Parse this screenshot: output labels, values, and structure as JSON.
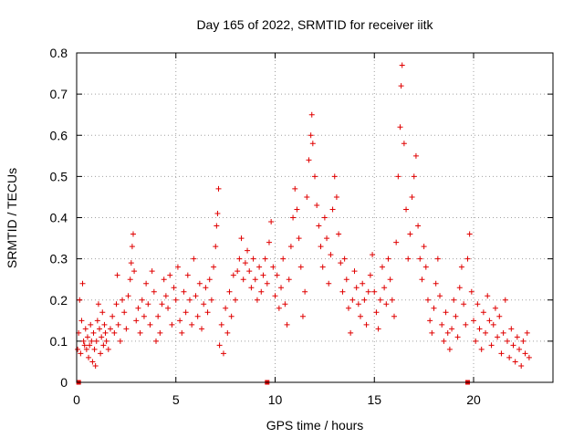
{
  "chart_data": {
    "type": "scatter",
    "title": "Day 165 of 2022, SRMTID for receiver iitk",
    "xlabel": "GPS time / hours",
    "ylabel": "SRMTID / TECUs",
    "xlim": [
      0,
      24
    ],
    "ylim": [
      0,
      0.8
    ],
    "grid": true,
    "xticks": [
      0,
      5,
      10,
      15,
      20
    ],
    "yticks": [
      0,
      0.1,
      0.2,
      0.3,
      0.4,
      0.5,
      0.6,
      0.7,
      0.8
    ],
    "xtick_labels": [
      "0",
      "5",
      "10",
      "15",
      "20"
    ],
    "ytick_labels": [
      "0",
      "0.1",
      "0.2",
      "0.3",
      "0.4",
      "0.5",
      "0.6",
      "0.7",
      "0.8"
    ],
    "marker_symbol": "+",
    "marker_color": "#e00000",
    "zero_markers_x": [
      0.1,
      9.6,
      19.7
    ],
    "series": [
      {
        "name": "SRMTID",
        "points": [
          [
            0.05,
            0.08
          ],
          [
            0.1,
            0.12
          ],
          [
            0.15,
            0.2
          ],
          [
            0.2,
            0.07
          ],
          [
            0.25,
            0.15
          ],
          [
            0.3,
            0.24
          ],
          [
            0.35,
            0.1
          ],
          [
            0.4,
            0.09
          ],
          [
            0.45,
            0.13
          ],
          [
            0.5,
            0.08
          ],
          [
            0.55,
            0.11
          ],
          [
            0.6,
            0.06
          ],
          [
            0.65,
            0.09
          ],
          [
            0.7,
            0.14
          ],
          [
            0.75,
            0.1
          ],
          [
            0.8,
            0.05
          ],
          [
            0.85,
            0.12
          ],
          [
            0.9,
            0.08
          ],
          [
            0.95,
            0.04
          ],
          [
            1.0,
            0.1
          ],
          [
            1.05,
            0.15
          ],
          [
            1.1,
            0.19
          ],
          [
            1.15,
            0.13
          ],
          [
            1.2,
            0.07
          ],
          [
            1.25,
            0.11
          ],
          [
            1.3,
            0.17
          ],
          [
            1.35,
            0.09
          ],
          [
            1.4,
            0.14
          ],
          [
            1.45,
            0.12
          ],
          [
            1.5,
            0.1
          ],
          [
            1.6,
            0.08
          ],
          [
            1.7,
            0.13
          ],
          [
            1.8,
            0.16
          ],
          [
            1.9,
            0.12
          ],
          [
            2.0,
            0.19
          ],
          [
            2.05,
            0.26
          ],
          [
            2.1,
            0.14
          ],
          [
            2.2,
            0.1
          ],
          [
            2.3,
            0.2
          ],
          [
            2.4,
            0.17
          ],
          [
            2.5,
            0.13
          ],
          [
            2.6,
            0.21
          ],
          [
            2.7,
            0.25
          ],
          [
            2.75,
            0.29
          ],
          [
            2.8,
            0.33
          ],
          [
            2.85,
            0.36
          ],
          [
            2.9,
            0.27
          ],
          [
            3.0,
            0.15
          ],
          [
            3.1,
            0.18
          ],
          [
            3.2,
            0.12
          ],
          [
            3.3,
            0.2
          ],
          [
            3.4,
            0.16
          ],
          [
            3.5,
            0.24
          ],
          [
            3.6,
            0.19
          ],
          [
            3.7,
            0.14
          ],
          [
            3.8,
            0.27
          ],
          [
            3.9,
            0.22
          ],
          [
            4.0,
            0.1
          ],
          [
            4.1,
            0.16
          ],
          [
            4.2,
            0.12
          ],
          [
            4.3,
            0.19
          ],
          [
            4.4,
            0.25
          ],
          [
            4.5,
            0.21
          ],
          [
            4.6,
            0.18
          ],
          [
            4.7,
            0.26
          ],
          [
            4.8,
            0.14
          ],
          [
            4.9,
            0.23
          ],
          [
            5.0,
            0.2
          ],
          [
            5.1,
            0.28
          ],
          [
            5.2,
            0.15
          ],
          [
            5.3,
            0.12
          ],
          [
            5.4,
            0.22
          ],
          [
            5.5,
            0.17
          ],
          [
            5.6,
            0.26
          ],
          [
            5.7,
            0.2
          ],
          [
            5.8,
            0.14
          ],
          [
            5.9,
            0.3
          ],
          [
            6.0,
            0.21
          ],
          [
            6.1,
            0.16
          ],
          [
            6.2,
            0.24
          ],
          [
            6.3,
            0.13
          ],
          [
            6.4,
            0.19
          ],
          [
            6.5,
            0.23
          ],
          [
            6.6,
            0.17
          ],
          [
            6.7,
            0.25
          ],
          [
            6.8,
            0.2
          ],
          [
            6.9,
            0.28
          ],
          [
            7.0,
            0.33
          ],
          [
            7.05,
            0.38
          ],
          [
            7.1,
            0.41
          ],
          [
            7.15,
            0.47
          ],
          [
            7.2,
            0.09
          ],
          [
            7.3,
            0.14
          ],
          [
            7.4,
            0.07
          ],
          [
            7.5,
            0.18
          ],
          [
            7.6,
            0.12
          ],
          [
            7.7,
            0.22
          ],
          [
            7.8,
            0.16
          ],
          [
            7.9,
            0.26
          ],
          [
            8.0,
            0.2
          ],
          [
            8.1,
            0.27
          ],
          [
            8.2,
            0.3
          ],
          [
            8.3,
            0.35
          ],
          [
            8.4,
            0.25
          ],
          [
            8.5,
            0.29
          ],
          [
            8.6,
            0.32
          ],
          [
            8.7,
            0.27
          ],
          [
            8.8,
            0.23
          ],
          [
            8.9,
            0.3
          ],
          [
            9.0,
            0.25
          ],
          [
            9.1,
            0.2
          ],
          [
            9.2,
            0.28
          ],
          [
            9.3,
            0.22
          ],
          [
            9.4,
            0.26
          ],
          [
            9.5,
            0.3
          ],
          [
            9.6,
            0.24
          ],
          [
            9.7,
            0.34
          ],
          [
            9.8,
            0.39
          ],
          [
            9.9,
            0.28
          ],
          [
            10.0,
            0.21
          ],
          [
            10.1,
            0.26
          ],
          [
            10.2,
            0.18
          ],
          [
            10.3,
            0.23
          ],
          [
            10.4,
            0.3
          ],
          [
            10.5,
            0.19
          ],
          [
            10.6,
            0.14
          ],
          [
            10.7,
            0.25
          ],
          [
            10.8,
            0.33
          ],
          [
            10.9,
            0.4
          ],
          [
            11.0,
            0.47
          ],
          [
            11.1,
            0.42
          ],
          [
            11.2,
            0.35
          ],
          [
            11.3,
            0.28
          ],
          [
            11.4,
            0.16
          ],
          [
            11.5,
            0.22
          ],
          [
            11.6,
            0.45
          ],
          [
            11.7,
            0.54
          ],
          [
            11.8,
            0.6
          ],
          [
            11.85,
            0.65
          ],
          [
            11.9,
            0.58
          ],
          [
            12.0,
            0.5
          ],
          [
            12.1,
            0.43
          ],
          [
            12.2,
            0.38
          ],
          [
            12.3,
            0.33
          ],
          [
            12.4,
            0.28
          ],
          [
            12.5,
            0.4
          ],
          [
            12.6,
            0.35
          ],
          [
            12.7,
            0.24
          ],
          [
            12.8,
            0.31
          ],
          [
            12.9,
            0.42
          ],
          [
            13.0,
            0.5
          ],
          [
            13.1,
            0.45
          ],
          [
            13.2,
            0.36
          ],
          [
            13.3,
            0.29
          ],
          [
            13.4,
            0.22
          ],
          [
            13.5,
            0.3
          ],
          [
            13.6,
            0.25
          ],
          [
            13.7,
            0.18
          ],
          [
            13.8,
            0.12
          ],
          [
            13.9,
            0.2
          ],
          [
            14.0,
            0.27
          ],
          [
            14.1,
            0.23
          ],
          [
            14.2,
            0.19
          ],
          [
            14.3,
            0.16
          ],
          [
            14.4,
            0.24
          ],
          [
            14.5,
            0.2
          ],
          [
            14.6,
            0.14
          ],
          [
            14.7,
            0.22
          ],
          [
            14.8,
            0.26
          ],
          [
            14.9,
            0.31
          ],
          [
            15.0,
            0.22
          ],
          [
            15.1,
            0.17
          ],
          [
            15.2,
            0.13
          ],
          [
            15.3,
            0.2
          ],
          [
            15.4,
            0.28
          ],
          [
            15.5,
            0.23
          ],
          [
            15.6,
            0.19
          ],
          [
            15.7,
            0.3
          ],
          [
            15.8,
            0.25
          ],
          [
            15.9,
            0.2
          ],
          [
            16.0,
            0.16
          ],
          [
            16.1,
            0.34
          ],
          [
            16.2,
            0.5
          ],
          [
            16.3,
            0.62
          ],
          [
            16.35,
            0.72
          ],
          [
            16.4,
            0.77
          ],
          [
            16.5,
            0.58
          ],
          [
            16.6,
            0.42
          ],
          [
            16.7,
            0.3
          ],
          [
            16.8,
            0.36
          ],
          [
            16.9,
            0.45
          ],
          [
            17.0,
            0.5
          ],
          [
            17.1,
            0.55
          ],
          [
            17.2,
            0.38
          ],
          [
            17.3,
            0.3
          ],
          [
            17.4,
            0.25
          ],
          [
            17.5,
            0.33
          ],
          [
            17.6,
            0.28
          ],
          [
            17.7,
            0.2
          ],
          [
            17.8,
            0.15
          ],
          [
            17.9,
            0.12
          ],
          [
            18.0,
            0.18
          ],
          [
            18.1,
            0.24
          ],
          [
            18.2,
            0.3
          ],
          [
            18.3,
            0.21
          ],
          [
            18.4,
            0.14
          ],
          [
            18.5,
            0.1
          ],
          [
            18.6,
            0.17
          ],
          [
            18.7,
            0.12
          ],
          [
            18.8,
            0.08
          ],
          [
            18.9,
            0.13
          ],
          [
            19.0,
            0.2
          ],
          [
            19.1,
            0.16
          ],
          [
            19.2,
            0.11
          ],
          [
            19.3,
            0.23
          ],
          [
            19.4,
            0.28
          ],
          [
            19.5,
            0.19
          ],
          [
            19.6,
            0.14
          ],
          [
            19.7,
            0.3
          ],
          [
            19.8,
            0.36
          ],
          [
            19.9,
            0.22
          ],
          [
            20.0,
            0.15
          ],
          [
            20.1,
            0.1
          ],
          [
            20.2,
            0.19
          ],
          [
            20.3,
            0.13
          ],
          [
            20.4,
            0.08
          ],
          [
            20.5,
            0.17
          ],
          [
            20.6,
            0.12
          ],
          [
            20.7,
            0.21
          ],
          [
            20.8,
            0.15
          ],
          [
            20.9,
            0.09
          ],
          [
            21.0,
            0.14
          ],
          [
            21.1,
            0.18
          ],
          [
            21.2,
            0.11
          ],
          [
            21.3,
            0.16
          ],
          [
            21.4,
            0.07
          ],
          [
            21.5,
            0.12
          ],
          [
            21.6,
            0.2
          ],
          [
            21.7,
            0.1
          ],
          [
            21.8,
            0.06
          ],
          [
            21.9,
            0.13
          ],
          [
            22.0,
            0.09
          ],
          [
            22.1,
            0.05
          ],
          [
            22.2,
            0.11
          ],
          [
            22.3,
            0.08
          ],
          [
            22.4,
            0.04
          ],
          [
            22.5,
            0.1
          ],
          [
            22.6,
            0.07
          ],
          [
            22.7,
            0.12
          ],
          [
            22.8,
            0.06
          ]
        ]
      }
    ]
  }
}
